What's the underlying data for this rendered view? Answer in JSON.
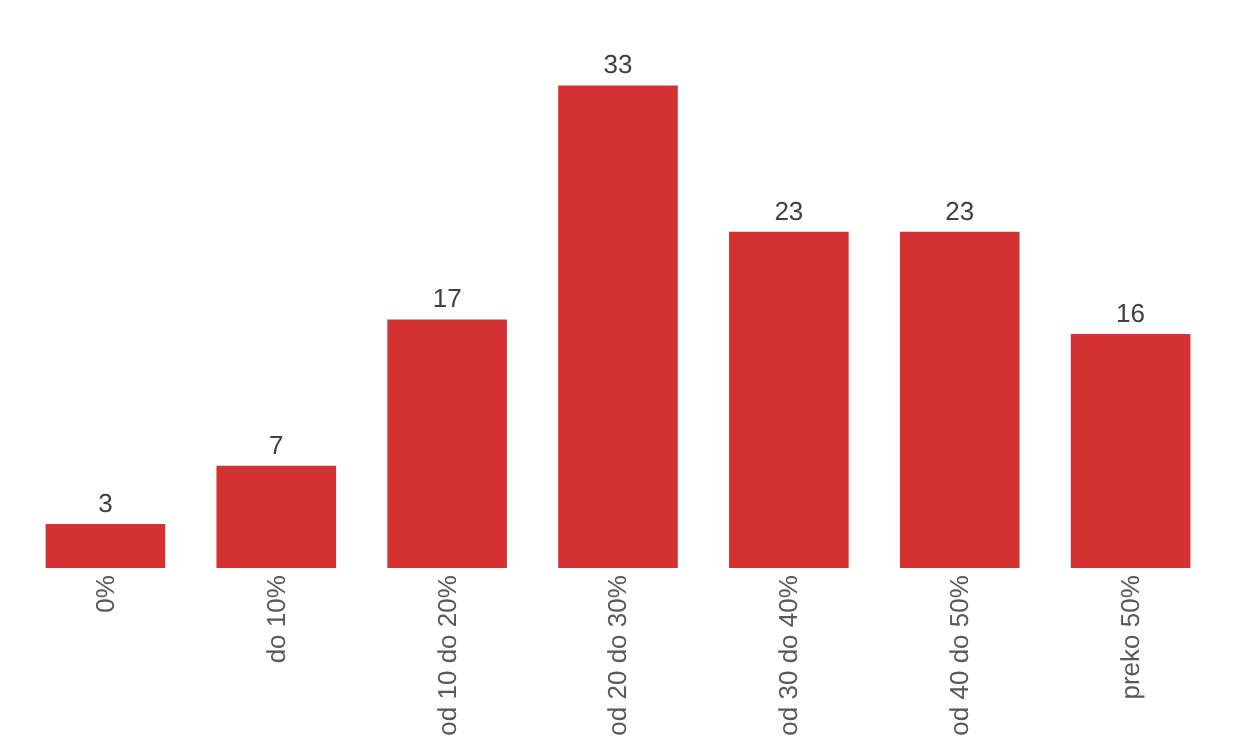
{
  "chart_data": {
    "type": "bar",
    "categories": [
      "0%",
      "do 10%",
      "od 10 do 20%",
      "od 20 do 30%",
      "od 30 do 40%",
      "od 40 do 50%",
      "preko 50%"
    ],
    "values": [
      3,
      7,
      17,
      33,
      23,
      23,
      16
    ],
    "color": "#d43132",
    "data_labels": true,
    "legend": false,
    "tick_labels": "x"
  }
}
